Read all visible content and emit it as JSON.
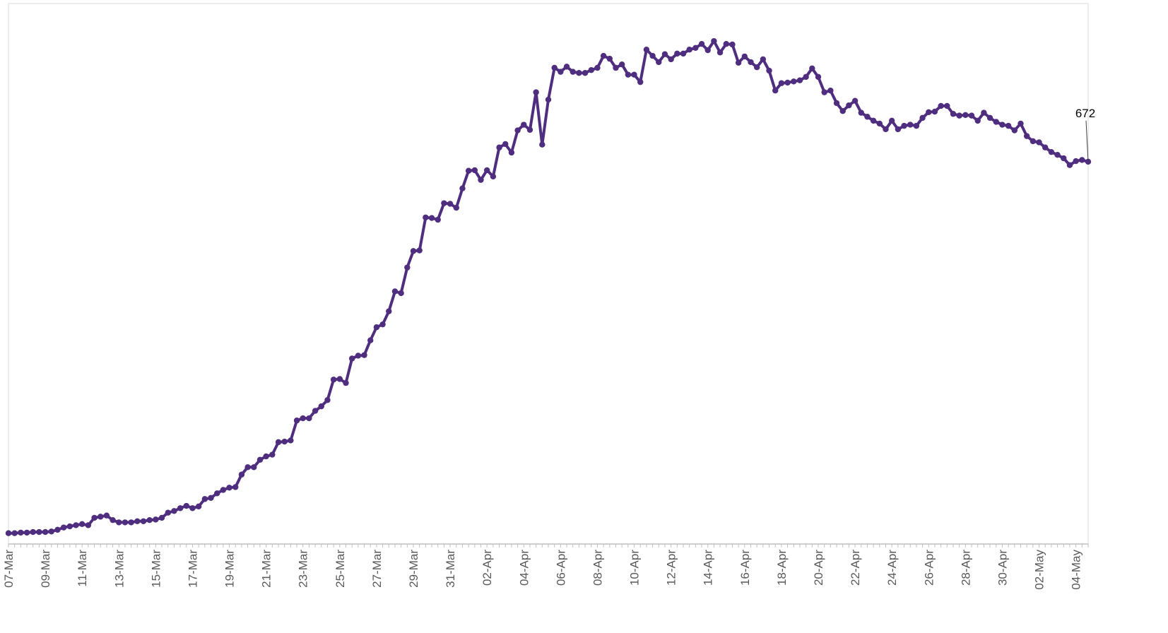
{
  "chart_data": {
    "type": "line",
    "categories": [
      "07-Mar",
      null,
      null,
      null,
      null,
      null,
      "09-Mar",
      null,
      null,
      null,
      null,
      null,
      "11-Mar",
      null,
      null,
      null,
      null,
      null,
      "13-Mar",
      null,
      null,
      null,
      null,
      null,
      "15-Mar",
      null,
      null,
      null,
      null,
      null,
      "17-Mar",
      null,
      null,
      null,
      null,
      null,
      "19-Mar",
      null,
      null,
      null,
      null,
      null,
      "21-Mar",
      null,
      null,
      null,
      null,
      null,
      "23-Mar",
      null,
      null,
      null,
      null,
      null,
      "25-Mar",
      null,
      null,
      null,
      null,
      null,
      "27-Mar",
      null,
      null,
      null,
      null,
      null,
      "29-Mar",
      null,
      null,
      null,
      null,
      null,
      "31-Mar",
      null,
      null,
      null,
      null,
      null,
      "02-Apr",
      null,
      null,
      null,
      null,
      null,
      "04-Apr",
      null,
      null,
      null,
      null,
      null,
      "06-Apr",
      null,
      null,
      null,
      null,
      null,
      "08-Apr",
      null,
      null,
      null,
      null,
      null,
      "10-Apr",
      null,
      null,
      null,
      null,
      null,
      "12-Apr",
      null,
      null,
      null,
      null,
      null,
      "14-Apr",
      null,
      null,
      null,
      null,
      null,
      "16-Apr",
      null,
      null,
      null,
      null,
      null,
      "18-Apr",
      null,
      null,
      null,
      null,
      null,
      "20-Apr",
      null,
      null,
      null,
      null,
      null,
      "22-Apr",
      null,
      null,
      null,
      null,
      null,
      "24-Apr",
      null,
      null,
      null,
      null,
      null,
      "26-Apr",
      null,
      null,
      null,
      null,
      null,
      "28-Apr",
      null,
      null,
      null,
      null,
      null,
      "30-Apr",
      null,
      null,
      null,
      null,
      null,
      "02-May",
      null,
      null,
      null,
      null,
      null,
      "04-May",
      null,
      null
    ],
    "series": [
      {
        "color": "#4f2d7f",
        "values": [
          19,
          19,
          20,
          20,
          21,
          21,
          21,
          22,
          25,
          29,
          31,
          33,
          35,
          33,
          46,
          48,
          50,
          42,
          38,
          38,
          38,
          40,
          40,
          42,
          43,
          46,
          55,
          58,
          63,
          67,
          63,
          66,
          79,
          81,
          89,
          95,
          99,
          100,
          122,
          135,
          135,
          148,
          154,
          157,
          179,
          180,
          182,
          217,
          221,
          221,
          234,
          242,
          253,
          289,
          290,
          283,
          326,
          331,
          332,
          358,
          381,
          386,
          409,
          444,
          441,
          486,
          515,
          516,
          574,
          573,
          570,
          599,
          598,
          591,
          625,
          656,
          657,
          640,
          657,
          646,
          697,
          703,
          688,
          727,
          737,
          728,
          794,
          702,
          781,
          837,
          830,
          839,
          830,
          828,
          828,
          833,
          837,
          858,
          853,
          837,
          843,
          825,
          825,
          812,
          869,
          858,
          847,
          861,
          852,
          862,
          862,
          869,
          872,
          879,
          868,
          884,
          864,
          879,
          878,
          846,
          857,
          847,
          838,
          852,
          832,
          797,
          810,
          811,
          813,
          815,
          821,
          836,
          821,
          794,
          797,
          775,
          761,
          771,
          779,
          758,
          751,
          744,
          739,
          729,
          744,
          729,
          735,
          737,
          735,
          749,
          759,
          760,
          770,
          770,
          756,
          753,
          754,
          753,
          744,
          758,
          749,
          742,
          737,
          735,
          727,
          739,
          717,
          708,
          706,
          697,
          689,
          684,
          678,
          666,
          673,
          675,
          672
        ]
      }
    ],
    "data_labels": "last",
    "ylim": [
      0,
      950
    ]
  }
}
